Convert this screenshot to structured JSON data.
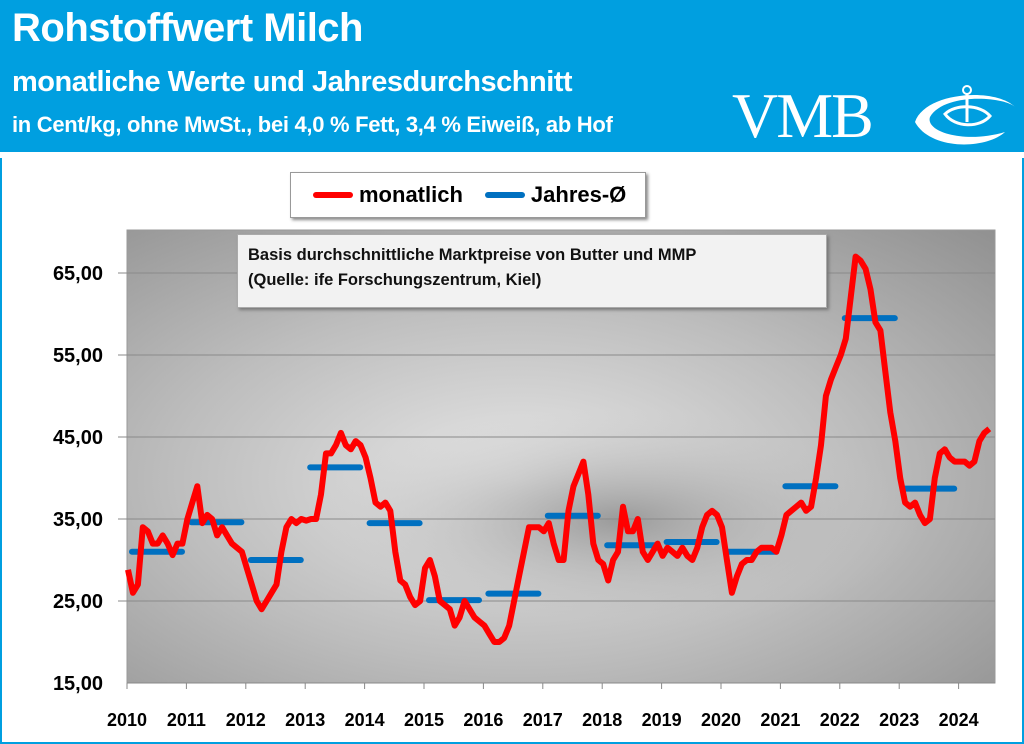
{
  "header": {
    "title": "Rohstoffwert Milch",
    "subtitle": "monatliche Werte und Jahresdurchschnitt",
    "unit_note": "in Cent/kg, ohne MwSt., bei 4,0 % Fett, 3,4 % Eiweiß, ab Hof",
    "logo_text": "VMB"
  },
  "colors": {
    "header_bg": "#009fe0",
    "monthly": "#ff0000",
    "annual": "#0070c0"
  },
  "chart_data": {
    "type": "line",
    "title": "",
    "xlabel": "",
    "ylabel": "",
    "ylim": [
      15,
      70
    ],
    "y_ticks": [
      "15,00",
      "25,00",
      "35,00",
      "45,00",
      "55,00",
      "65,00"
    ],
    "y_tick_values": [
      15,
      25,
      35,
      45,
      55,
      65
    ],
    "x_ticks": [
      "2010",
      "2011",
      "2012",
      "2013",
      "2014",
      "2015",
      "2016",
      "2017",
      "2018",
      "2019",
      "2020",
      "2021",
      "2022",
      "2023",
      "2024"
    ],
    "grid": "horizontal",
    "legend": {
      "position": "top",
      "items": [
        "monatlich",
        "Jahres-Ø"
      ]
    },
    "annotation": [
      "Basis durchschnittliche Marktpreise von Butter und MMP",
      "(Quelle: ife Forschungszentrum, Kiel)"
    ],
    "series": [
      {
        "name": "monatlich",
        "start": "2010-01",
        "frequency": "monthly",
        "values": [
          28.8,
          26,
          27,
          34,
          33.5,
          32,
          32,
          33,
          32,
          30.6,
          32,
          32,
          35,
          37,
          39,
          34.5,
          35.5,
          35,
          33,
          34,
          33,
          32,
          31.5,
          31,
          29,
          27,
          25,
          24,
          25,
          26,
          27,
          31,
          34,
          35,
          34.5,
          35,
          34.8,
          35,
          35,
          38,
          43,
          43,
          44,
          45.5,
          44,
          43.5,
          44.5,
          44,
          42.5,
          40,
          37,
          36.5,
          37,
          36,
          31,
          27.5,
          27,
          25.5,
          24.5,
          25,
          29,
          30,
          28,
          25,
          24.5,
          24,
          22,
          23,
          25,
          24,
          23,
          22.5,
          22,
          21,
          20,
          20,
          20.5,
          22,
          25,
          28,
          31,
          34,
          34,
          34,
          33.5,
          34.5,
          32,
          30,
          30,
          36,
          39,
          40.5,
          42,
          38,
          32,
          30,
          29.5,
          27.5,
          30,
          31,
          36.5,
          33.5,
          33.5,
          35,
          31,
          30,
          31,
          32,
          30.5,
          31.5,
          31,
          30.5,
          31.5,
          30.5,
          30,
          31.5,
          34,
          35.5,
          36,
          35.5,
          34,
          30,
          26,
          28,
          29.5,
          30,
          30,
          31,
          31.5,
          31.5,
          31.5,
          31,
          33,
          35.5,
          36,
          36.5,
          37,
          36,
          36.5,
          40,
          44,
          50,
          52,
          53.5,
          55,
          57,
          62,
          67,
          66.5,
          65.5,
          63,
          59,
          58,
          53,
          48,
          44.5,
          40,
          37,
          36.5,
          37,
          35.5,
          34.5,
          35,
          40,
          43,
          43.5,
          42.5,
          42,
          42,
          42,
          41.5,
          42,
          44.5,
          45.5,
          46
        ]
      },
      {
        "name": "Jahres-Ø",
        "categories": [
          "2010",
          "2011",
          "2012",
          "2013",
          "2014",
          "2015",
          "2016",
          "2017",
          "2018",
          "2019",
          "2020",
          "2021",
          "2022",
          "2023"
        ],
        "values": [
          31.0,
          34.6,
          30.0,
          41.3,
          34.5,
          25.1,
          25.9,
          35.4,
          31.8,
          32.2,
          31.0,
          39.0,
          59.5,
          38.7
        ]
      }
    ]
  }
}
